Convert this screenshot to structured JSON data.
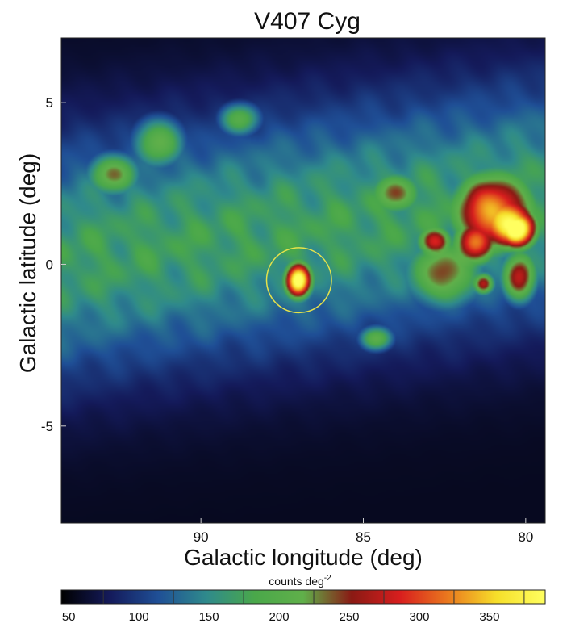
{
  "chart_data": {
    "type": "heatmap",
    "title": "V407 Cyg",
    "xlabel": "Galactic longitude (deg)",
    "ylabel": "Galactic latitude (deg)",
    "xlim": [
      94.3,
      79.4
    ],
    "ylim": [
      -8,
      7
    ],
    "x_ticks": [
      {
        "value": 90,
        "label": "90"
      },
      {
        "value": 85,
        "label": "85"
      },
      {
        "value": 80,
        "label": "80"
      }
    ],
    "y_ticks": [
      {
        "value": 5,
        "label": "5"
      },
      {
        "value": 0,
        "label": "0"
      },
      {
        "value": -5,
        "label": "-5"
      }
    ],
    "colorbar": {
      "label_main": "counts deg",
      "label_exponent": "-2",
      "range": [
        20,
        365
      ],
      "ticks": [
        {
          "value": 50,
          "label": "50"
        },
        {
          "value": 100,
          "label": "100"
        },
        {
          "value": 150,
          "label": "150"
        },
        {
          "value": 200,
          "label": "200"
        },
        {
          "value": 250,
          "label": "250"
        },
        {
          "value": 300,
          "label": "300"
        },
        {
          "value": 350,
          "label": "350"
        }
      ],
      "colors": [
        "#000000",
        "#141a5a",
        "#1f4f96",
        "#2f8a8c",
        "#4aa84a",
        "#60b04a",
        "#8a1a14",
        "#d81e1e",
        "#ea7a1e",
        "#f6df2a",
        "#ffff60"
      ]
    },
    "source_marker": {
      "l": 86.98,
      "b": -0.49,
      "radius_deg": 1.0,
      "color": "#e6e24a"
    },
    "emission_regions": [
      {
        "l": 80.3,
        "b": 1.1,
        "peak": 350,
        "sigma_l": 0.45,
        "sigma_b": 0.45
      },
      {
        "l": 81.0,
        "b": 1.6,
        "peak": 255,
        "sigma_l": 0.9,
        "sigma_b": 0.9
      },
      {
        "l": 81.6,
        "b": 0.6,
        "peak": 215,
        "sigma_l": 0.5,
        "sigma_b": 0.5
      },
      {
        "l": 82.8,
        "b": 0.7,
        "peak": 200,
        "sigma_l": 0.4,
        "sigma_b": 0.35
      },
      {
        "l": 80.2,
        "b": -0.4,
        "peak": 205,
        "sigma_l": 0.4,
        "sigma_b": 0.6
      },
      {
        "l": 81.3,
        "b": -0.6,
        "peak": 200,
        "sigma_l": 0.25,
        "sigma_b": 0.25
      },
      {
        "l": 87.0,
        "b": -0.5,
        "peak": 335,
        "sigma_l": 0.3,
        "sigma_b": 0.4
      },
      {
        "l": 92.7,
        "b": 2.8,
        "peak": 165,
        "sigma_l": 0.6,
        "sigma_b": 0.5
      },
      {
        "l": 91.3,
        "b": 3.8,
        "peak": 160,
        "sigma_l": 0.6,
        "sigma_b": 0.6
      },
      {
        "l": 88.8,
        "b": 4.5,
        "peak": 150,
        "sigma_l": 0.5,
        "sigma_b": 0.4
      },
      {
        "l": 84.0,
        "b": 2.2,
        "peak": 155,
        "sigma_l": 0.6,
        "sigma_b": 0.5
      },
      {
        "l": 82.5,
        "b": -0.3,
        "peak": 165,
        "sigma_l": 0.9,
        "sigma_b": 0.8
      },
      {
        "l": 84.6,
        "b": -2.3,
        "peak": 160,
        "sigma_l": 0.4,
        "sigma_b": 0.3
      }
    ]
  }
}
